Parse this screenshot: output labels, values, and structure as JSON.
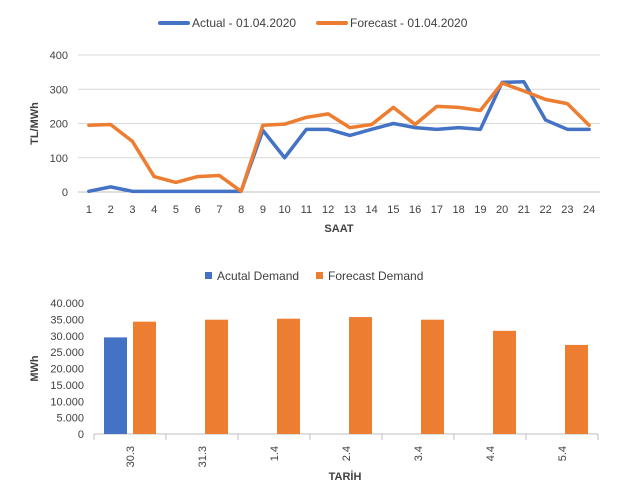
{
  "chart_data": [
    {
      "type": "line",
      "xlabel": "SAAT",
      "ylabel": "TL/MWh",
      "x": [
        1,
        2,
        3,
        4,
        5,
        6,
        7,
        8,
        9,
        10,
        11,
        12,
        13,
        14,
        15,
        16,
        17,
        18,
        19,
        20,
        21,
        22,
        23,
        24
      ],
      "ylim": [
        0,
        400
      ],
      "yticks": [
        0,
        100,
        200,
        300,
        400
      ],
      "grid": "horizontal",
      "legend": "top-center",
      "series": [
        {
          "name": "Actual - 01.04.2020",
          "color": "#4472C4",
          "values": [
            2,
            15,
            2,
            2,
            2,
            2,
            2,
            2,
            180,
            100,
            183,
            183,
            165,
            183,
            200,
            188,
            183,
            188,
            183,
            320,
            322,
            210,
            183,
            183
          ]
        },
        {
          "name": "Forecast - 01.04.2020",
          "color": "#ED7D31",
          "values": [
            195,
            197,
            148,
            45,
            28,
            45,
            48,
            2,
            195,
            198,
            218,
            228,
            188,
            197,
            247,
            197,
            250,
            247,
            238,
            318,
            295,
            270,
            258,
            195
          ]
        }
      ]
    },
    {
      "type": "bar",
      "xlabel": "TARİH",
      "ylabel": "MWh",
      "categories": [
        "30.3",
        "31.3",
        "1.4",
        "2.4",
        "3.4",
        "4.4",
        "5.4"
      ],
      "ylim": [
        0,
        40000
      ],
      "yticks": [
        "0",
        "5.000",
        "10.000",
        "15.000",
        "20.000",
        "25.000",
        "30.000",
        "35.000",
        "40.000"
      ],
      "grid": "vertical-separators",
      "legend": "top-center",
      "series": [
        {
          "name": "Acutal Demand",
          "color": "#4472C4",
          "values": [
            29500,
            null,
            null,
            null,
            null,
            null,
            null
          ]
        },
        {
          "name": "Forecast Demand",
          "color": "#ED7D31",
          "values": [
            34300,
            34900,
            35200,
            35700,
            34900,
            31500,
            27200
          ]
        }
      ]
    }
  ]
}
